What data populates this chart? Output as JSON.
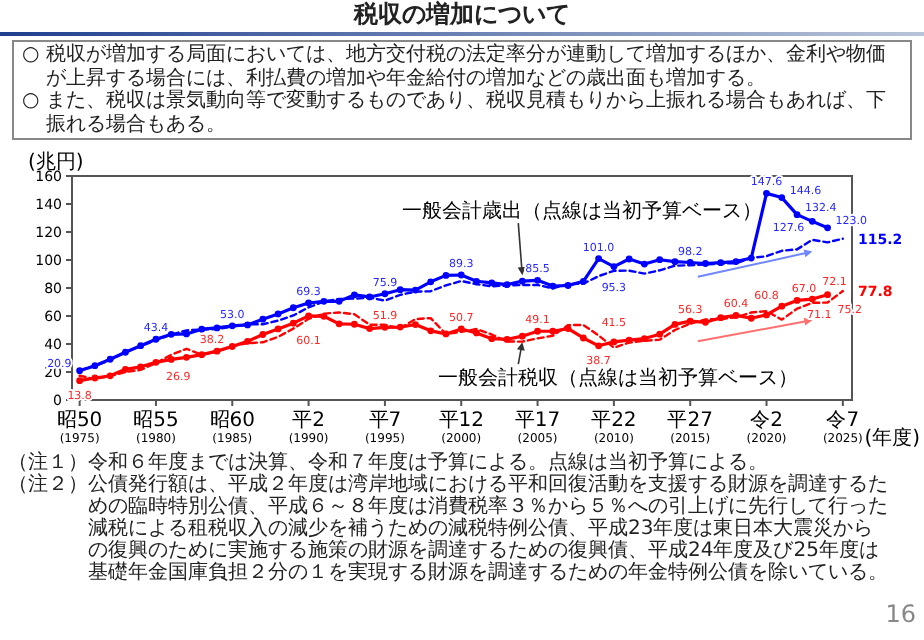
{
  "chart_data": {
    "type": "line",
    "title": "税収の増加について",
    "ylabel": "(兆円)",
    "xlabel": "(年度)",
    "categories": [
      "昭50\n(1975)",
      null,
      null,
      null,
      null,
      "昭55\n(1980)",
      null,
      null,
      null,
      null,
      "昭60\n(1985)",
      null,
      null,
      null,
      null,
      "平2\n(1990)",
      null,
      null,
      null,
      null,
      "平7\n(1995)",
      null,
      null,
      null,
      null,
      "平12\n(2000)",
      null,
      null,
      null,
      null,
      "平17\n(2005)",
      null,
      null,
      null,
      null,
      "平22\n(2010)",
      null,
      null,
      null,
      null,
      "平27\n(2015)",
      null,
      null,
      null,
      null,
      "令2\n(2020)",
      null,
      null,
      null,
      null,
      "令7\n(2025)"
    ],
    "ylim": [
      0,
      160
    ],
    "yticks": [
      0,
      20,
      40,
      60,
      80,
      100,
      120,
      140,
      160
    ],
    "series": [
      {
        "color": "#0000ff",
        "marker": "circle",
        "line_style": "solid",
        "values": [
          20.9,
          24.5,
          29.1,
          34.1,
          38.8,
          43.4,
          46.9,
          47.2,
          50.6,
          51.5,
          53.0,
          53.6,
          57.7,
          61.5,
          65.9,
          69.3,
          70.5,
          70.5,
          75.1,
          73.6,
          75.9,
          78.8,
          78.5,
          84.4,
          89.0,
          89.3,
          84.8,
          83.7,
          82.4,
          84.9,
          85.5,
          81.4,
          81.8,
          84.7,
          101.0,
          95.3,
          100.7,
          97.1,
          100.2,
          98.8,
          98.2,
          97.5,
          98.1,
          98.9,
          101.4,
          147.6,
          144.6,
          132.4,
          127.6,
          123.0,
          null
        ],
        "value_labels": [
          "20.9",
          null,
          null,
          null,
          null,
          "43.4",
          null,
          null,
          null,
          null,
          "53.0",
          null,
          null,
          null,
          null,
          "69.3",
          null,
          null,
          null,
          null,
          "75.9",
          null,
          null,
          null,
          null,
          "89.3",
          null,
          null,
          null,
          null,
          "85.5",
          null,
          null,
          null,
          "101.0",
          "95.3",
          null,
          null,
          null,
          null,
          "98.2",
          null,
          null,
          null,
          null,
          "147.6",
          "144.6",
          "132.4",
          "127.6",
          "123.0",
          null
        ]
      },
      {
        "color": "#0000ff",
        "marker": "none",
        "line_style": "dashed",
        "values": [
          21.3,
          24.3,
          28.5,
          34.3,
          38.6,
          42.6,
          46.8,
          49.7,
          50.4,
          50.6,
          52.5,
          54.1,
          54.1,
          56.7,
          60.4,
          66.2,
          70.3,
          72.2,
          72.4,
          73.1,
          71.0,
          75.1,
          77.4,
          77.7,
          81.9,
          85.0,
          82.7,
          81.2,
          81.8,
          82.1,
          82.2,
          79.7,
          82.9,
          83.1,
          88.5,
          92.3,
          92.4,
          90.3,
          92.6,
          95.9,
          96.3,
          96.7,
          97.5,
          97.7,
          101.5,
          102.7,
          106.6,
          107.6,
          114.4,
          112.6,
          115.2
        ],
        "value_labels": [
          null,
          null,
          null,
          null,
          null,
          null,
          null,
          null,
          null,
          null,
          null,
          null,
          null,
          null,
          null,
          null,
          null,
          null,
          null,
          null,
          null,
          null,
          null,
          null,
          null,
          null,
          null,
          null,
          null,
          null,
          null,
          null,
          null,
          null,
          null,
          null,
          null,
          null,
          null,
          null,
          null,
          null,
          null,
          null,
          null,
          null,
          null,
          null,
          null,
          null,
          "115.2"
        ]
      },
      {
        "color": "#ff0000",
        "marker": "circle",
        "line_style": "solid",
        "values": [
          13.8,
          15.7,
          17.3,
          21.9,
          23.7,
          26.9,
          29.0,
          30.5,
          32.4,
          34.9,
          38.2,
          41.9,
          46.8,
          50.8,
          54.9,
          60.1,
          59.8,
          54.4,
          54.1,
          51.0,
          51.9,
          52.1,
          53.9,
          49.4,
          47.2,
          50.7,
          47.9,
          43.8,
          43.3,
          45.6,
          49.1,
          49.1,
          51.0,
          44.3,
          38.7,
          41.5,
          42.8,
          43.9,
          47.0,
          54.0,
          56.3,
          55.5,
          58.8,
          60.4,
          58.4,
          60.8,
          67.0,
          71.1,
          72.1,
          75.2,
          null
        ],
        "value_labels": [
          "13.8",
          null,
          null,
          null,
          null,
          "26.9",
          null,
          null,
          null,
          null,
          "38.2",
          null,
          null,
          null,
          null,
          "60.1",
          null,
          null,
          null,
          null,
          "51.9",
          null,
          null,
          null,
          null,
          "50.7",
          null,
          null,
          null,
          null,
          "49.1",
          null,
          null,
          null,
          "38.7",
          "41.5",
          null,
          null,
          null,
          null,
          "56.3",
          null,
          null,
          "60.4",
          null,
          "60.8",
          "67.0",
          "71.1",
          "72.1",
          "75.2",
          null
        ]
      },
      {
        "color": "#ff0000",
        "marker": "none",
        "line_style": "dashed",
        "values": [
          17.3,
          15.0,
          17.1,
          20.0,
          21.5,
          26.4,
          32.3,
          36.6,
          32.3,
          34.6,
          38.6,
          40.6,
          41.2,
          45.1,
          51.0,
          58.0,
          61.7,
          62.5,
          61.3,
          53.7,
          53.7,
          51.3,
          57.8,
          58.5,
          47.1,
          48.7,
          50.7,
          46.8,
          41.8,
          41.7,
          44.0,
          45.9,
          53.5,
          53.6,
          46.1,
          37.4,
          41.0,
          42.3,
          43.1,
          50.0,
          54.5,
          57.6,
          57.7,
          59.1,
          62.5,
          63.5,
          57.4,
          65.2,
          69.4,
          69.6,
          77.8
        ],
        "value_labels": [
          null,
          null,
          null,
          null,
          null,
          null,
          null,
          null,
          null,
          null,
          null,
          null,
          null,
          null,
          null,
          null,
          null,
          null,
          null,
          null,
          null,
          null,
          null,
          null,
          null,
          null,
          null,
          null,
          null,
          null,
          null,
          null,
          null,
          null,
          null,
          null,
          null,
          null,
          null,
          null,
          null,
          null,
          null,
          null,
          null,
          null,
          null,
          null,
          null,
          null,
          "77.8"
        ]
      }
    ],
    "annotations": [
      "○ 税収が増加する局面においては、地方交付税の法定率分が連動して増加するほか、金利や物価が上昇する場合には、利払費の増加や年金給付の増加などの歳出面も増加する。",
      "○ また、税収は景気動向等で変動するものであり、税収見積もりから上振れる場合もあれば、下振れる場合もある。",
      "一般会計歳出（点線は当初予算ベース）",
      "一般会計税収（点線は当初予算ベース）",
      "（注１）令和６年度までは決算、令和７年度は予算による。点線は当初予算による。",
      "（注２）公債発行額は、平成２年度は湾岸地域における平和回復活動を支援する財源を調達するための臨時特別公債、平成６～８年度は消費税率３％から５％への引上げに先行して行った減税による租税収入の減少を補うための減税特例公債、平成23年度は東日本大震災からの復興のために実施する施策の財源を調達するための復興債、平成24年度及び25年度は基礎年金国庫負担２分の１を実現する財源を調達するための年金特例公債を除いている。",
      "16"
    ]
  }
}
